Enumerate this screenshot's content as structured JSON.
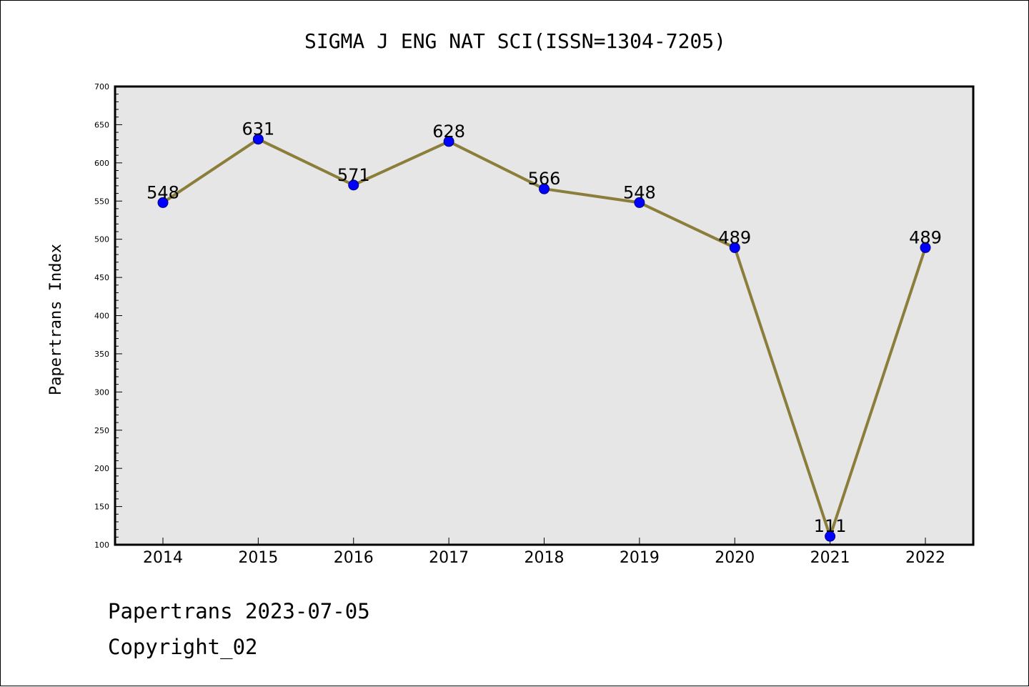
{
  "chart_data": {
    "type": "line",
    "title": "SIGMA J ENG NAT SCI(ISSN=1304-7205)",
    "xlabel": "",
    "ylabel": "Papertrans Index",
    "categories": [
      "2014",
      "2015",
      "2016",
      "2017",
      "2018",
      "2019",
      "2020",
      "2021",
      "2022"
    ],
    "series": [
      {
        "values": [
          548,
          631,
          571,
          628,
          566,
          548,
          489,
          111,
          489
        ]
      }
    ],
    "data_labels": [
      "548",
      "631",
      "571",
      "628",
      "566",
      "548",
      "489",
      "111",
      "489"
    ],
    "ylim": [
      100,
      700
    ],
    "yticks": [
      100,
      150,
      200,
      250,
      300,
      350,
      400,
      450,
      500,
      550,
      600,
      650,
      700
    ],
    "ytick_labels": [
      "100",
      "150",
      "200",
      "250",
      "300",
      "350",
      "400",
      "450",
      "500",
      "550",
      "600",
      "650",
      "700"
    ],
    "grid": false,
    "legend": "none",
    "colors": {
      "plot_background": "#e6e6e6",
      "line": "#8b7d3a",
      "marker_fill": "#0000ff",
      "marker_edge": "#000080"
    }
  },
  "footer": {
    "line1": "Papertrans 2023-07-05",
    "line2": "Copyright_02"
  }
}
